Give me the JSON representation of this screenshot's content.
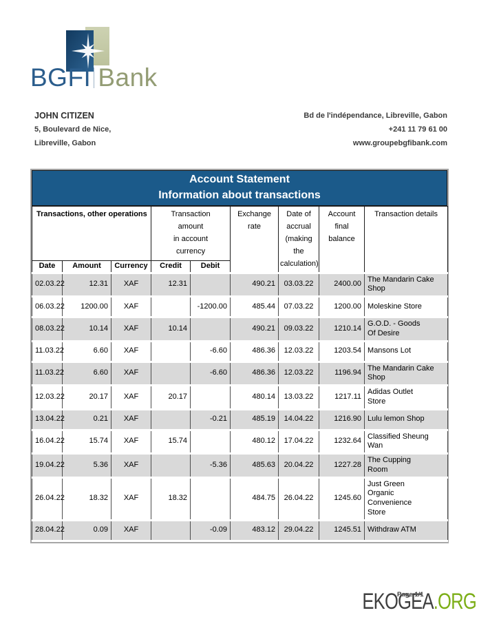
{
  "brand": {
    "primary": "BGFI",
    "secondary": "Bank"
  },
  "customer": {
    "name": "JOHN CITIZEN",
    "address_line1": "5, Boulevard de Nice,",
    "address_line2": "Libreville, Gabon"
  },
  "bank_contact": {
    "address": "Bd de l'indépendance, Libreville, Gabon",
    "phone": "+241 11 79 61 00",
    "website": "www.groupebgfibank.com"
  },
  "statement": {
    "title_line1": "Account Statement",
    "title_line2": "Information about transactions"
  },
  "table": {
    "group_headers": {
      "transactions": "Transactions, other operations",
      "amount_in_currency": "Transaction\namount\nin account\ncurrency",
      "exchange_rate": "Exchange\nrate",
      "accrual_date": "Date of\naccrual\n(making\nthe\ncalculation)",
      "final_balance": "Account\nfinal\nbalance",
      "details": "Transaction details"
    },
    "sub_headers": {
      "date": "Date",
      "amount": "Amount",
      "currency": "Currency",
      "credit": "Credit",
      "debit": "Debit"
    },
    "rows": [
      {
        "date": "02.03.22",
        "amount": "12.31",
        "currency": "XAF",
        "credit": "12.31",
        "debit": "",
        "exchange_rate": "490.21",
        "accrual_date": "03.03.22",
        "balance": "2400.00",
        "details": "The Mandarin   Cake\nShop"
      },
      {
        "date": "06.03.22",
        "amount": "1200.00",
        "currency": "XAF",
        "credit": "",
        "debit": "-1200.00",
        "exchange_rate": "485.44",
        "accrual_date": "07.03.22",
        "balance": "1200.00",
        "details": "Moleskine Store"
      },
      {
        "date": "08.03.22",
        "amount": "10.14",
        "currency": "XAF",
        "credit": "10.14",
        "debit": "",
        "exchange_rate": "490.21",
        "accrual_date": "09.03.22",
        "balance": "1210.14",
        "details": "G.O.D. - Goods\nOf Desire"
      },
      {
        "date": "11.03.22",
        "amount": "6.60",
        "currency": "XAF",
        "credit": "",
        "debit": "-6.60",
        "exchange_rate": "486.36",
        "accrual_date": "12.03.22",
        "balance": "1203.54",
        "details": "Mansons Lot"
      },
      {
        "date": "11.03.22",
        "amount": "6.60",
        "currency": "XAF",
        "credit": "",
        "debit": "-6.60",
        "exchange_rate": "486.36",
        "accrual_date": "12.03.22",
        "balance": "1196.94",
        "details": "The Mandarin Cake\nShop"
      },
      {
        "date": "12.03.22",
        "amount": "20.17",
        "currency": "XAF",
        "credit": "20.17",
        "debit": "",
        "exchange_rate": "480.14",
        "accrual_date": "13.03.22",
        "balance": "1217.11",
        "details": "Adidas Outlet\nStore"
      },
      {
        "date": "13.04.22",
        "amount": "0.21",
        "currency": "XAF",
        "credit": "",
        "debit": "-0.21",
        "exchange_rate": "485.19",
        "accrual_date": "14.04.22",
        "balance": "1216.90",
        "details": "Lulu lemon Shop"
      },
      {
        "date": "16.04.22",
        "amount": "15.74",
        "currency": "XAF",
        "credit": "15.74",
        "debit": "",
        "exchange_rate": "480.12",
        "accrual_date": "17.04.22",
        "balance": "1232.64",
        "details": "Classified Sheung\nWan"
      },
      {
        "date": "19.04.22",
        "amount": "5.36",
        "currency": "XAF",
        "credit": "",
        "debit": "-5.36",
        "exchange_rate": "485.63",
        "accrual_date": "20.04.22",
        "balance": "1227.28",
        "details": "The Cupping\nRoom"
      },
      {
        "date": "26.04.22",
        "amount": "18.32",
        "currency": "XAF",
        "credit": "18.32",
        "debit": "",
        "exchange_rate": "484.75",
        "accrual_date": "26.04.22",
        "balance": "1245.60",
        "details": "Just Green\nOrganic\nConvenience\nStore"
      },
      {
        "date": "28.04.22",
        "amount": "0.09",
        "currency": "XAF",
        "credit": "",
        "debit": "-0.09",
        "exchange_rate": "483.12",
        "accrual_date": "29.04.22",
        "balance": "1245.51",
        "details": "Withdraw ATM"
      }
    ]
  },
  "footer": {
    "page_label": "Page 1/1",
    "watermark_dark": "EKOGEA",
    "watermark_green": ".ORG"
  },
  "colors": {
    "header_blue": "#1b5a8a",
    "row_gray": "#d9d9d9",
    "brand_blue": "#2b5d8c",
    "brand_green": "#939c74",
    "logo_blue_dark": "#16436b",
    "logo_blue_light": "#2d6392",
    "logo_green": "#c5caa8",
    "watermark_green": "#7cae17"
  }
}
